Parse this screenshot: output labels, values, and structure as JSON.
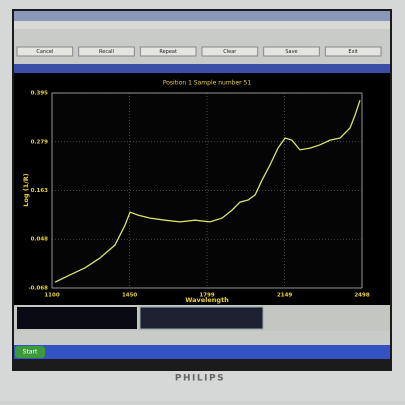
{
  "monitor": {
    "brand": "PHILIPS"
  },
  "toolbar": {
    "buttons": [
      "Cancel",
      "Recall",
      "Repeat",
      "Clear",
      "Save",
      "Exit"
    ]
  },
  "taskbar": {
    "start": "Start"
  },
  "chart_data": {
    "type": "line",
    "title": "Position 1  Sample number 51",
    "x_label": "Wavelength",
    "y_label": "Log (1/R)",
    "x": [
      1114,
      1181,
      1249,
      1316,
      1384,
      1429,
      1452,
      1488,
      1542,
      1610,
      1677,
      1745,
      1813,
      1867,
      1912,
      1948,
      1984,
      2016,
      2047,
      2083,
      2119,
      2151,
      2182,
      2218,
      2264,
      2309,
      2354,
      2399,
      2444,
      2467,
      2489
    ],
    "series": [
      {
        "color": "#d9e36a",
        "values": [
          -0.054,
          -0.037,
          -0.02,
          0.003,
          0.034,
          0.081,
          0.112,
          0.105,
          0.098,
          0.093,
          0.089,
          0.093,
          0.089,
          0.098,
          0.117,
          0.136,
          0.141,
          0.153,
          0.188,
          0.224,
          0.264,
          0.288,
          0.283,
          0.26,
          0.264,
          0.272,
          0.283,
          0.288,
          0.312,
          0.343,
          0.378
        ]
      }
    ],
    "xlim": [
      1100,
      2498
    ],
    "xticks": [
      1100,
      1450,
      1799,
      2149,
      2498
    ],
    "ylim": [
      -0.068,
      0.395
    ],
    "yticks": [
      -0.068,
      0.048,
      0.163,
      0.279,
      0.395
    ],
    "grid": true
  }
}
